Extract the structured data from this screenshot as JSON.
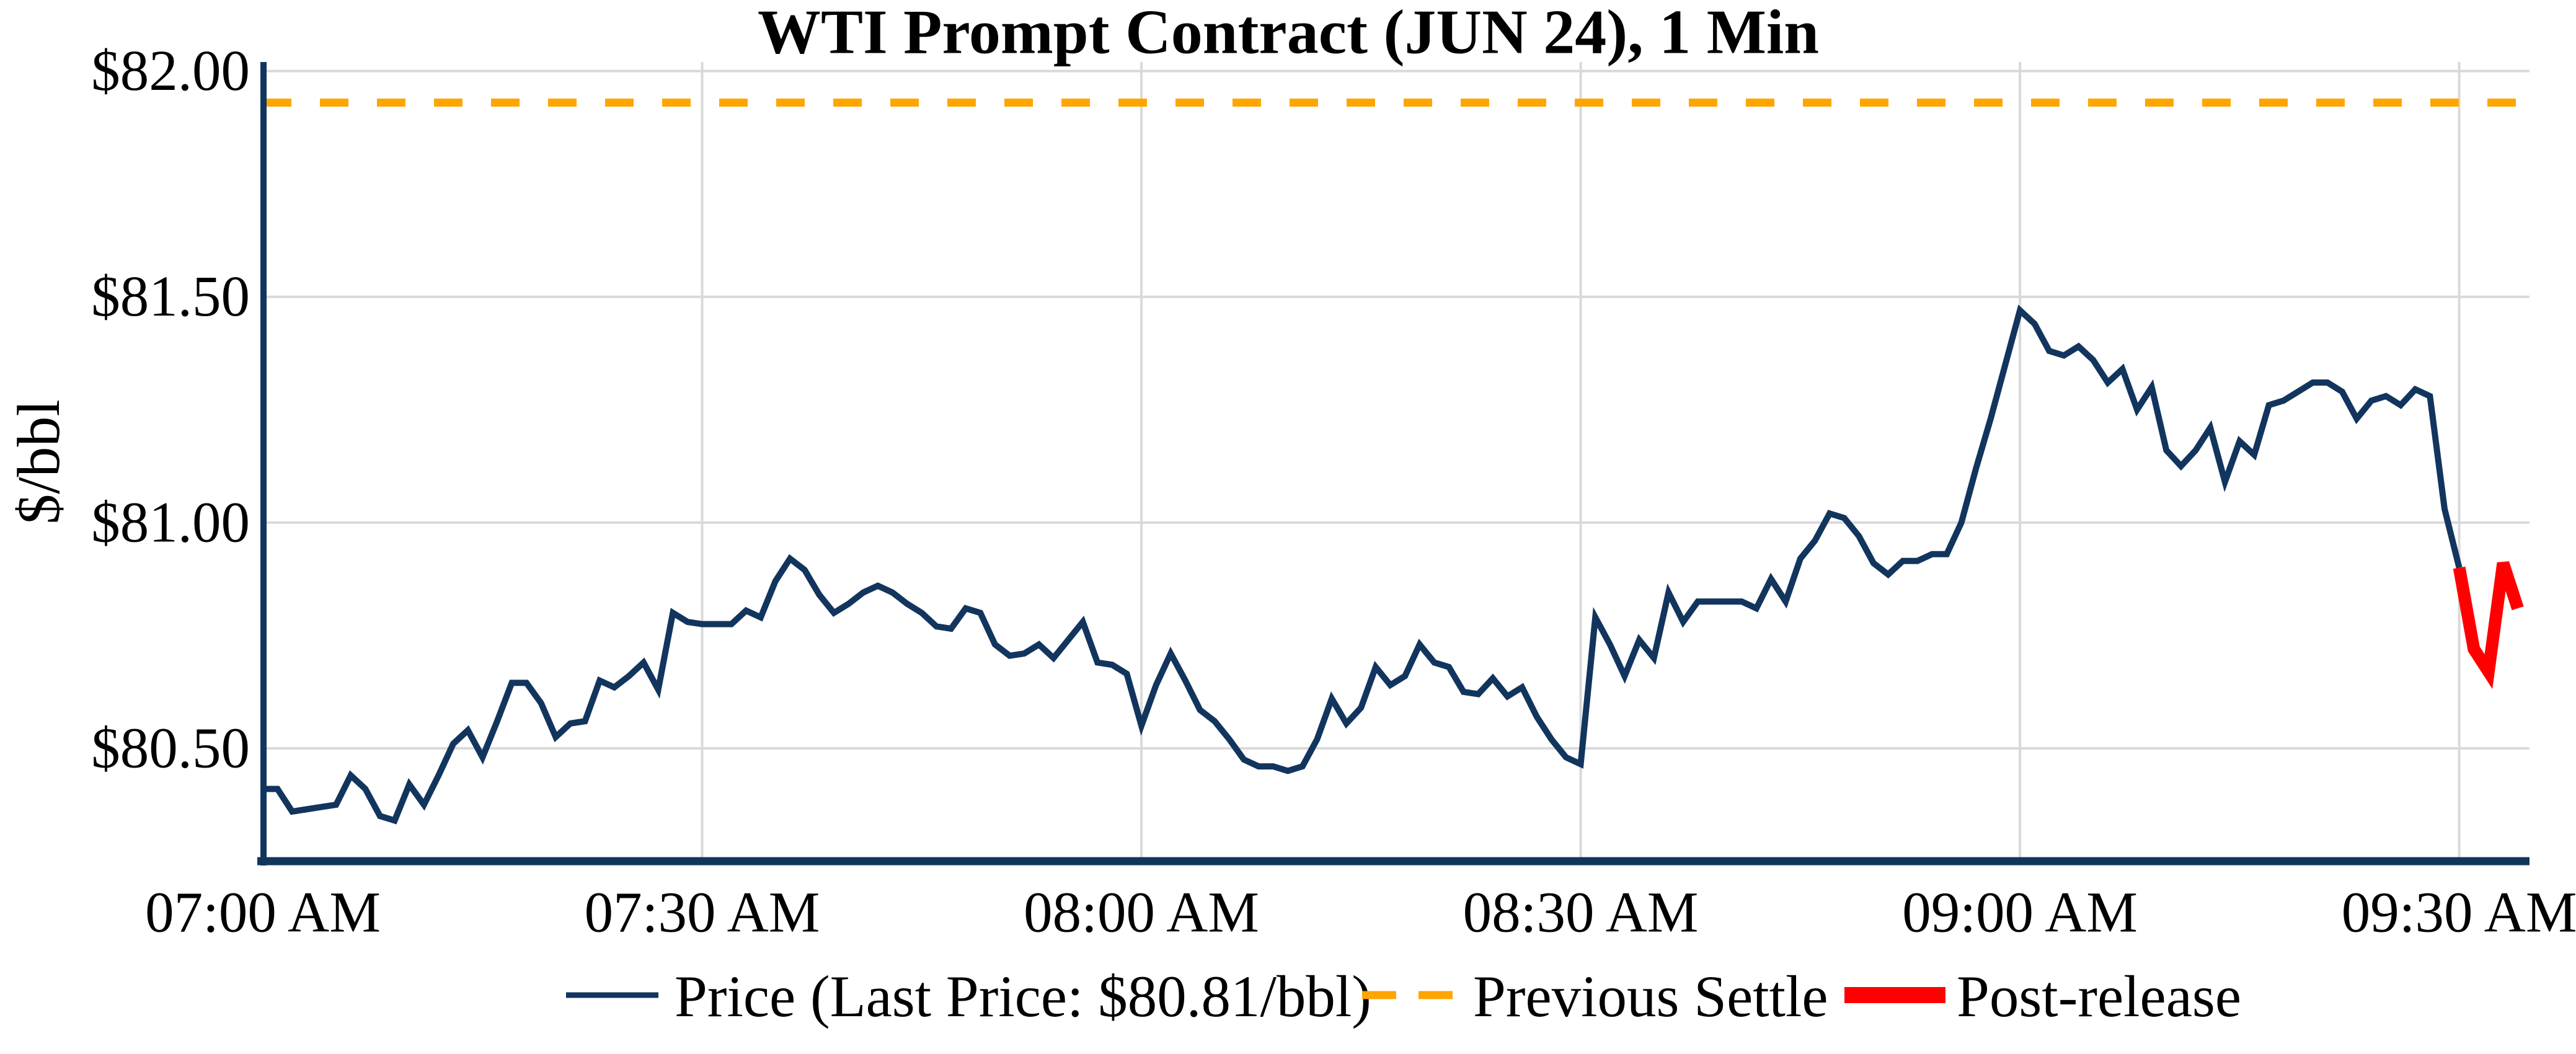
{
  "title": "WTI Prompt Contract (JUN 24), 1 Min",
  "ylabel": "$/bbl",
  "legend": {
    "price_label": "Price (Last Price: $80.81/bbl)",
    "settle_label": "Previous Settle",
    "post_label": "Post-release"
  },
  "last_price": "$80.81/bbl",
  "chart_data": {
    "type": "line",
    "title": "WTI Prompt Contract (JUN 24), 1 Min",
    "xlabel": "",
    "ylabel": "$/bbl",
    "x_unit": "minutes since 07:00 AM, 1-minute bars",
    "xlim": [
      0,
      154.8
    ],
    "ylim": [
      80.25,
      82.02
    ],
    "grid": true,
    "xticks": [
      {
        "minute": 0,
        "label": "07:00 AM"
      },
      {
        "minute": 30,
        "label": "07:30 AM"
      },
      {
        "minute": 60,
        "label": "08:00 AM"
      },
      {
        "minute": 90,
        "label": "08:30 AM"
      },
      {
        "minute": 120,
        "label": "09:00 AM"
      },
      {
        "minute": 150,
        "label": "09:30 AM"
      }
    ],
    "yticks": [
      {
        "value": 80.5,
        "label": "$80.50"
      },
      {
        "value": 81.0,
        "label": "$81.00"
      },
      {
        "value": 81.5,
        "label": "$81.50"
      },
      {
        "value": 82.0,
        "label": "$82.00"
      }
    ],
    "previous_settle": 81.93,
    "post_release_start_index": 150,
    "last_price_value": 80.81,
    "colors": {
      "price": "#12355E",
      "previous_settle": "#FFA500",
      "post_release": "#FF0000",
      "grid": "#D9D9D9",
      "spine": "#12355E"
    },
    "series": [
      {
        "name": "Price",
        "values": [
          80.41,
          80.41,
          80.36,
          80.365,
          80.37,
          80.375,
          80.44,
          80.41,
          80.35,
          80.34,
          80.42,
          80.375,
          80.44,
          80.51,
          80.54,
          80.48,
          80.56,
          80.645,
          80.645,
          80.6,
          80.525,
          80.555,
          80.56,
          80.65,
          80.635,
          80.66,
          80.69,
          80.63,
          80.8,
          80.78,
          80.775,
          80.775,
          80.775,
          80.805,
          80.79,
          80.87,
          80.92,
          80.895,
          80.84,
          80.8,
          80.82,
          80.845,
          80.86,
          80.845,
          80.82,
          80.8,
          80.77,
          80.765,
          80.81,
          80.8,
          80.73,
          80.705,
          80.71,
          80.73,
          80.7,
          80.74,
          80.78,
          80.69,
          80.685,
          80.665,
          80.55,
          80.64,
          80.71,
          80.65,
          80.585,
          80.56,
          80.52,
          80.475,
          80.46,
          80.46,
          80.45,
          80.46,
          80.52,
          80.61,
          80.555,
          80.59,
          80.68,
          80.64,
          80.66,
          80.73,
          80.69,
          80.68,
          80.625,
          80.62,
          80.655,
          80.615,
          80.635,
          80.57,
          80.52,
          80.48,
          80.465,
          80.79,
          80.73,
          80.66,
          80.74,
          80.7,
          80.845,
          80.78,
          80.825,
          80.825,
          80.825,
          80.825,
          80.81,
          80.875,
          80.825,
          80.92,
          80.96,
          81.02,
          81.01,
          80.97,
          80.91,
          80.885,
          80.915,
          80.915,
          80.93,
          80.93,
          81.0,
          81.12,
          81.23,
          81.35,
          81.47,
          81.44,
          81.38,
          81.37,
          81.39,
          81.36,
          81.31,
          81.34,
          81.25,
          81.3,
          81.16,
          81.125,
          81.16,
          81.21,
          81.09,
          81.18,
          81.15,
          81.26,
          81.27,
          81.29,
          81.31,
          81.31,
          81.29,
          81.23,
          81.27,
          81.28,
          81.26,
          81.295,
          81.28,
          81.03,
          80.9,
          80.72,
          80.67,
          80.91,
          80.81
        ]
      },
      {
        "name": "Post-release",
        "note": "red overlay of Price series from post_release_start_index to end"
      }
    ]
  }
}
